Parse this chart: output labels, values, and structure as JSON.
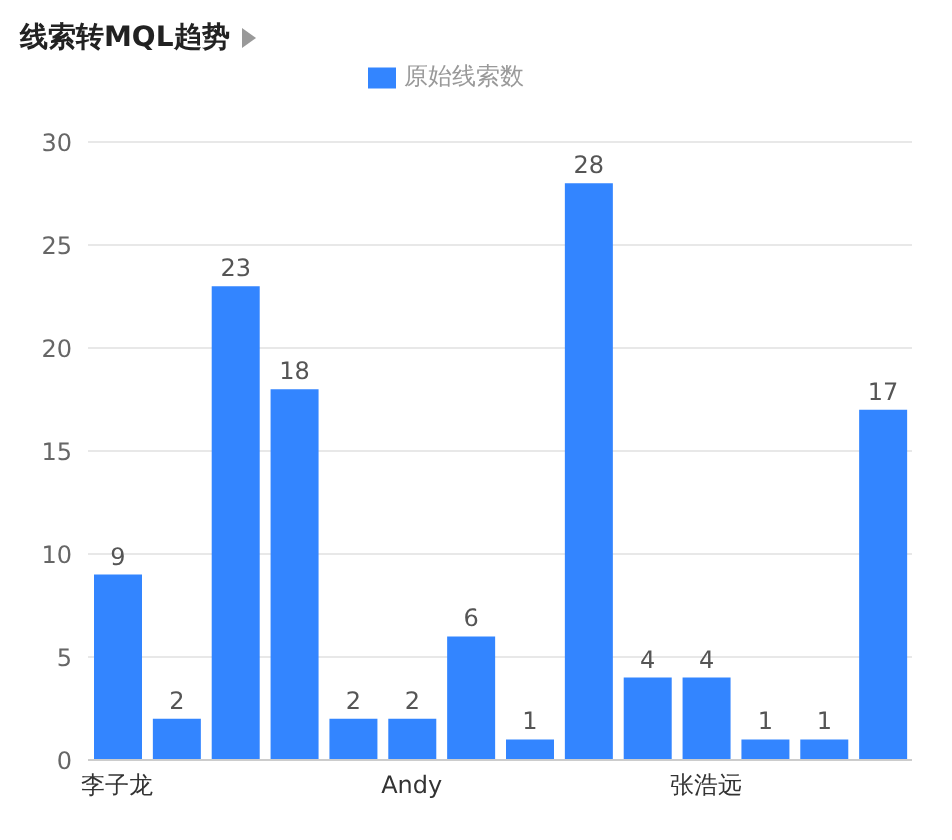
{
  "chart_data": {
    "type": "bar",
    "title": "线索转MQL趋势",
    "categories": [
      "李子龙",
      null,
      null,
      null,
      null,
      "Andy",
      null,
      null,
      null,
      null,
      "张浩远",
      null,
      null,
      null
    ],
    "series": [
      {
        "name": "原始线索数",
        "color": "#3385ff",
        "values": [
          9,
          2,
          23,
          18,
          2,
          2,
          6,
          1,
          28,
          4,
          4,
          1,
          1,
          17
        ]
      }
    ],
    "ylim": [
      0,
      30
    ],
    "yticks": [
      0,
      5,
      10,
      15,
      20,
      25,
      30
    ],
    "grid": "y",
    "legend": "top",
    "data_labels": true
  }
}
